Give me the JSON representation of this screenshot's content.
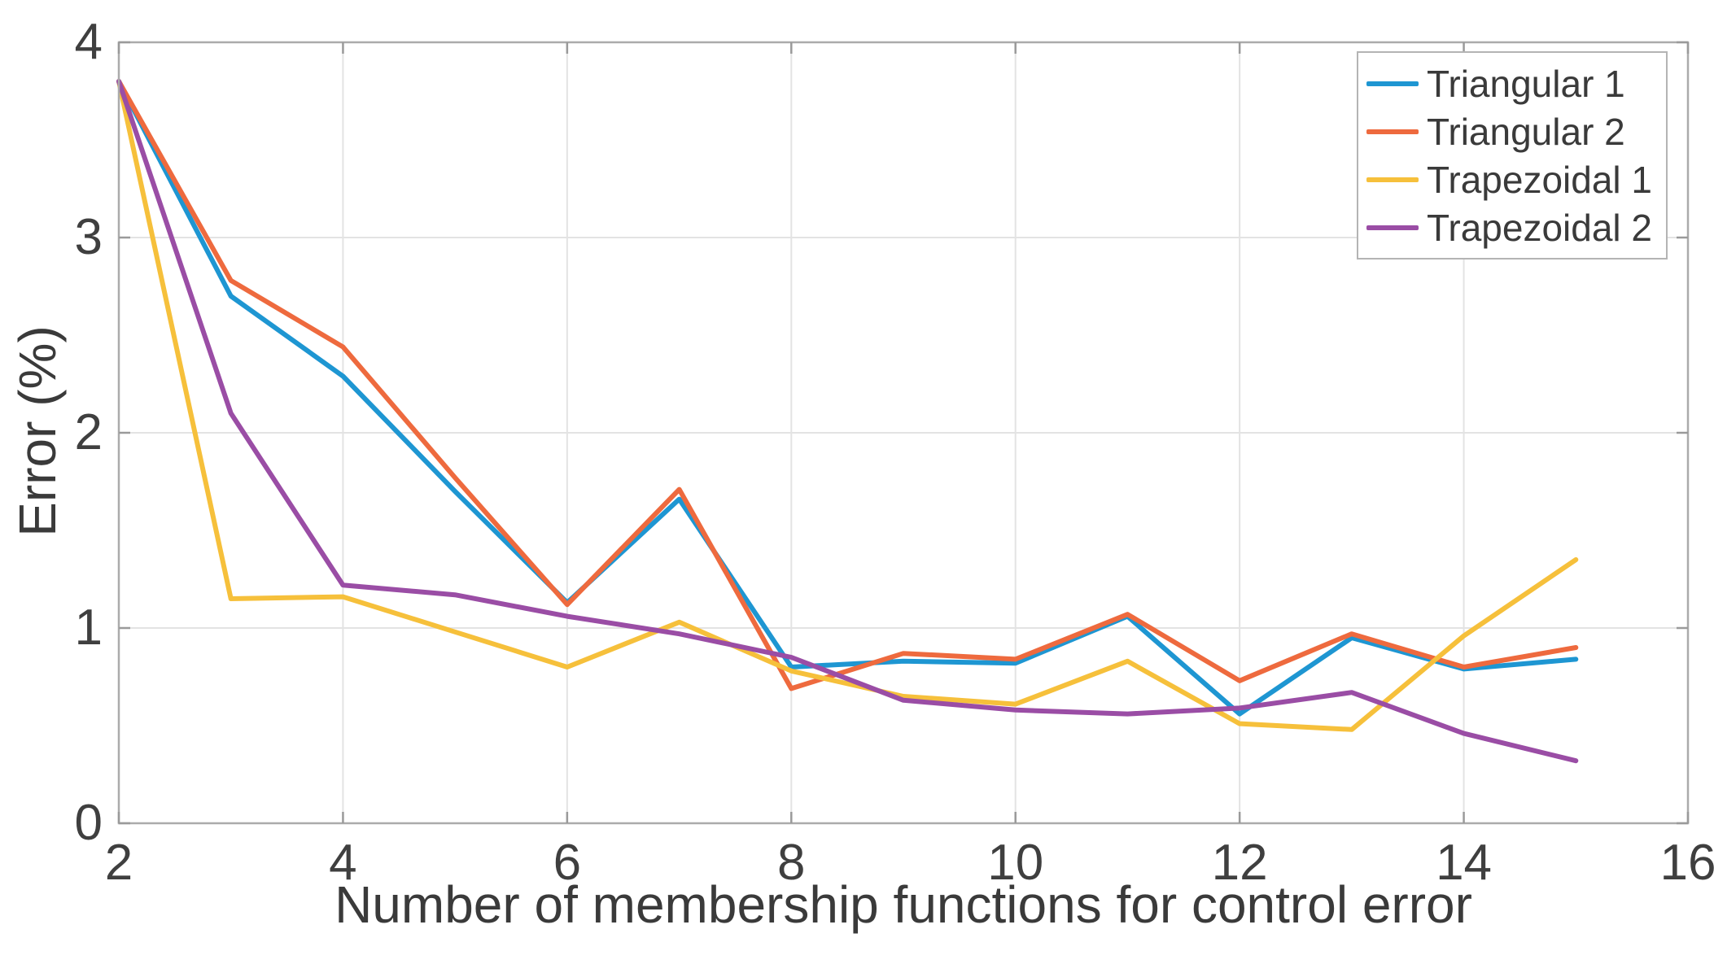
{
  "figure": {
    "background": "#ffffff",
    "axis_color": "#ababab",
    "tick_color": "#9a9a9a",
    "grid_color": "#e3e3e3",
    "tick_label_color": "#3f3f3f"
  },
  "chart_data": {
    "type": "line",
    "title": "",
    "xlabel": "Number of membership functions for control error",
    "ylabel": "Error (%)",
    "x": [
      2,
      3,
      4,
      5,
      6,
      7,
      8,
      9,
      10,
      11,
      12,
      13,
      14,
      15
    ],
    "xlim": [
      2,
      16
    ],
    "ylim": [
      0,
      4
    ],
    "x_ticks": [
      "2",
      "4",
      "6",
      "8",
      "10",
      "12",
      "14",
      "16"
    ],
    "x_tick_values": [
      2,
      4,
      6,
      8,
      10,
      12,
      14,
      16
    ],
    "y_ticks": [
      "0",
      "1",
      "2",
      "3",
      "4"
    ],
    "y_tick_values": [
      0,
      1,
      2,
      3,
      4
    ],
    "grid": true,
    "legend_position": "top-right",
    "series": [
      {
        "name": "Triangular 1",
        "color": "#1e96d2",
        "values": [
          3.8,
          2.7,
          2.29,
          1.7,
          1.13,
          1.66,
          0.8,
          0.83,
          0.82,
          1.06,
          0.56,
          0.95,
          0.79,
          0.84
        ]
      },
      {
        "name": "Triangular 2",
        "color": "#ee6a3e",
        "values": [
          3.8,
          2.78,
          2.44,
          1.77,
          1.12,
          1.71,
          0.69,
          0.87,
          0.84,
          1.07,
          0.73,
          0.97,
          0.8,
          0.9
        ]
      },
      {
        "name": "Trapezoidal 1",
        "color": "#f6c03b",
        "values": [
          3.8,
          1.15,
          1.16,
          0.98,
          0.8,
          1.03,
          0.78,
          0.65,
          0.61,
          0.83,
          0.51,
          0.48,
          0.96,
          1.35
        ]
      },
      {
        "name": "Trapezoidal 2",
        "color": "#9a4da5",
        "values": [
          3.8,
          2.1,
          1.22,
          1.17,
          1.06,
          0.97,
          0.85,
          0.63,
          0.58,
          0.56,
          0.59,
          0.67,
          0.46,
          0.32
        ]
      }
    ]
  }
}
